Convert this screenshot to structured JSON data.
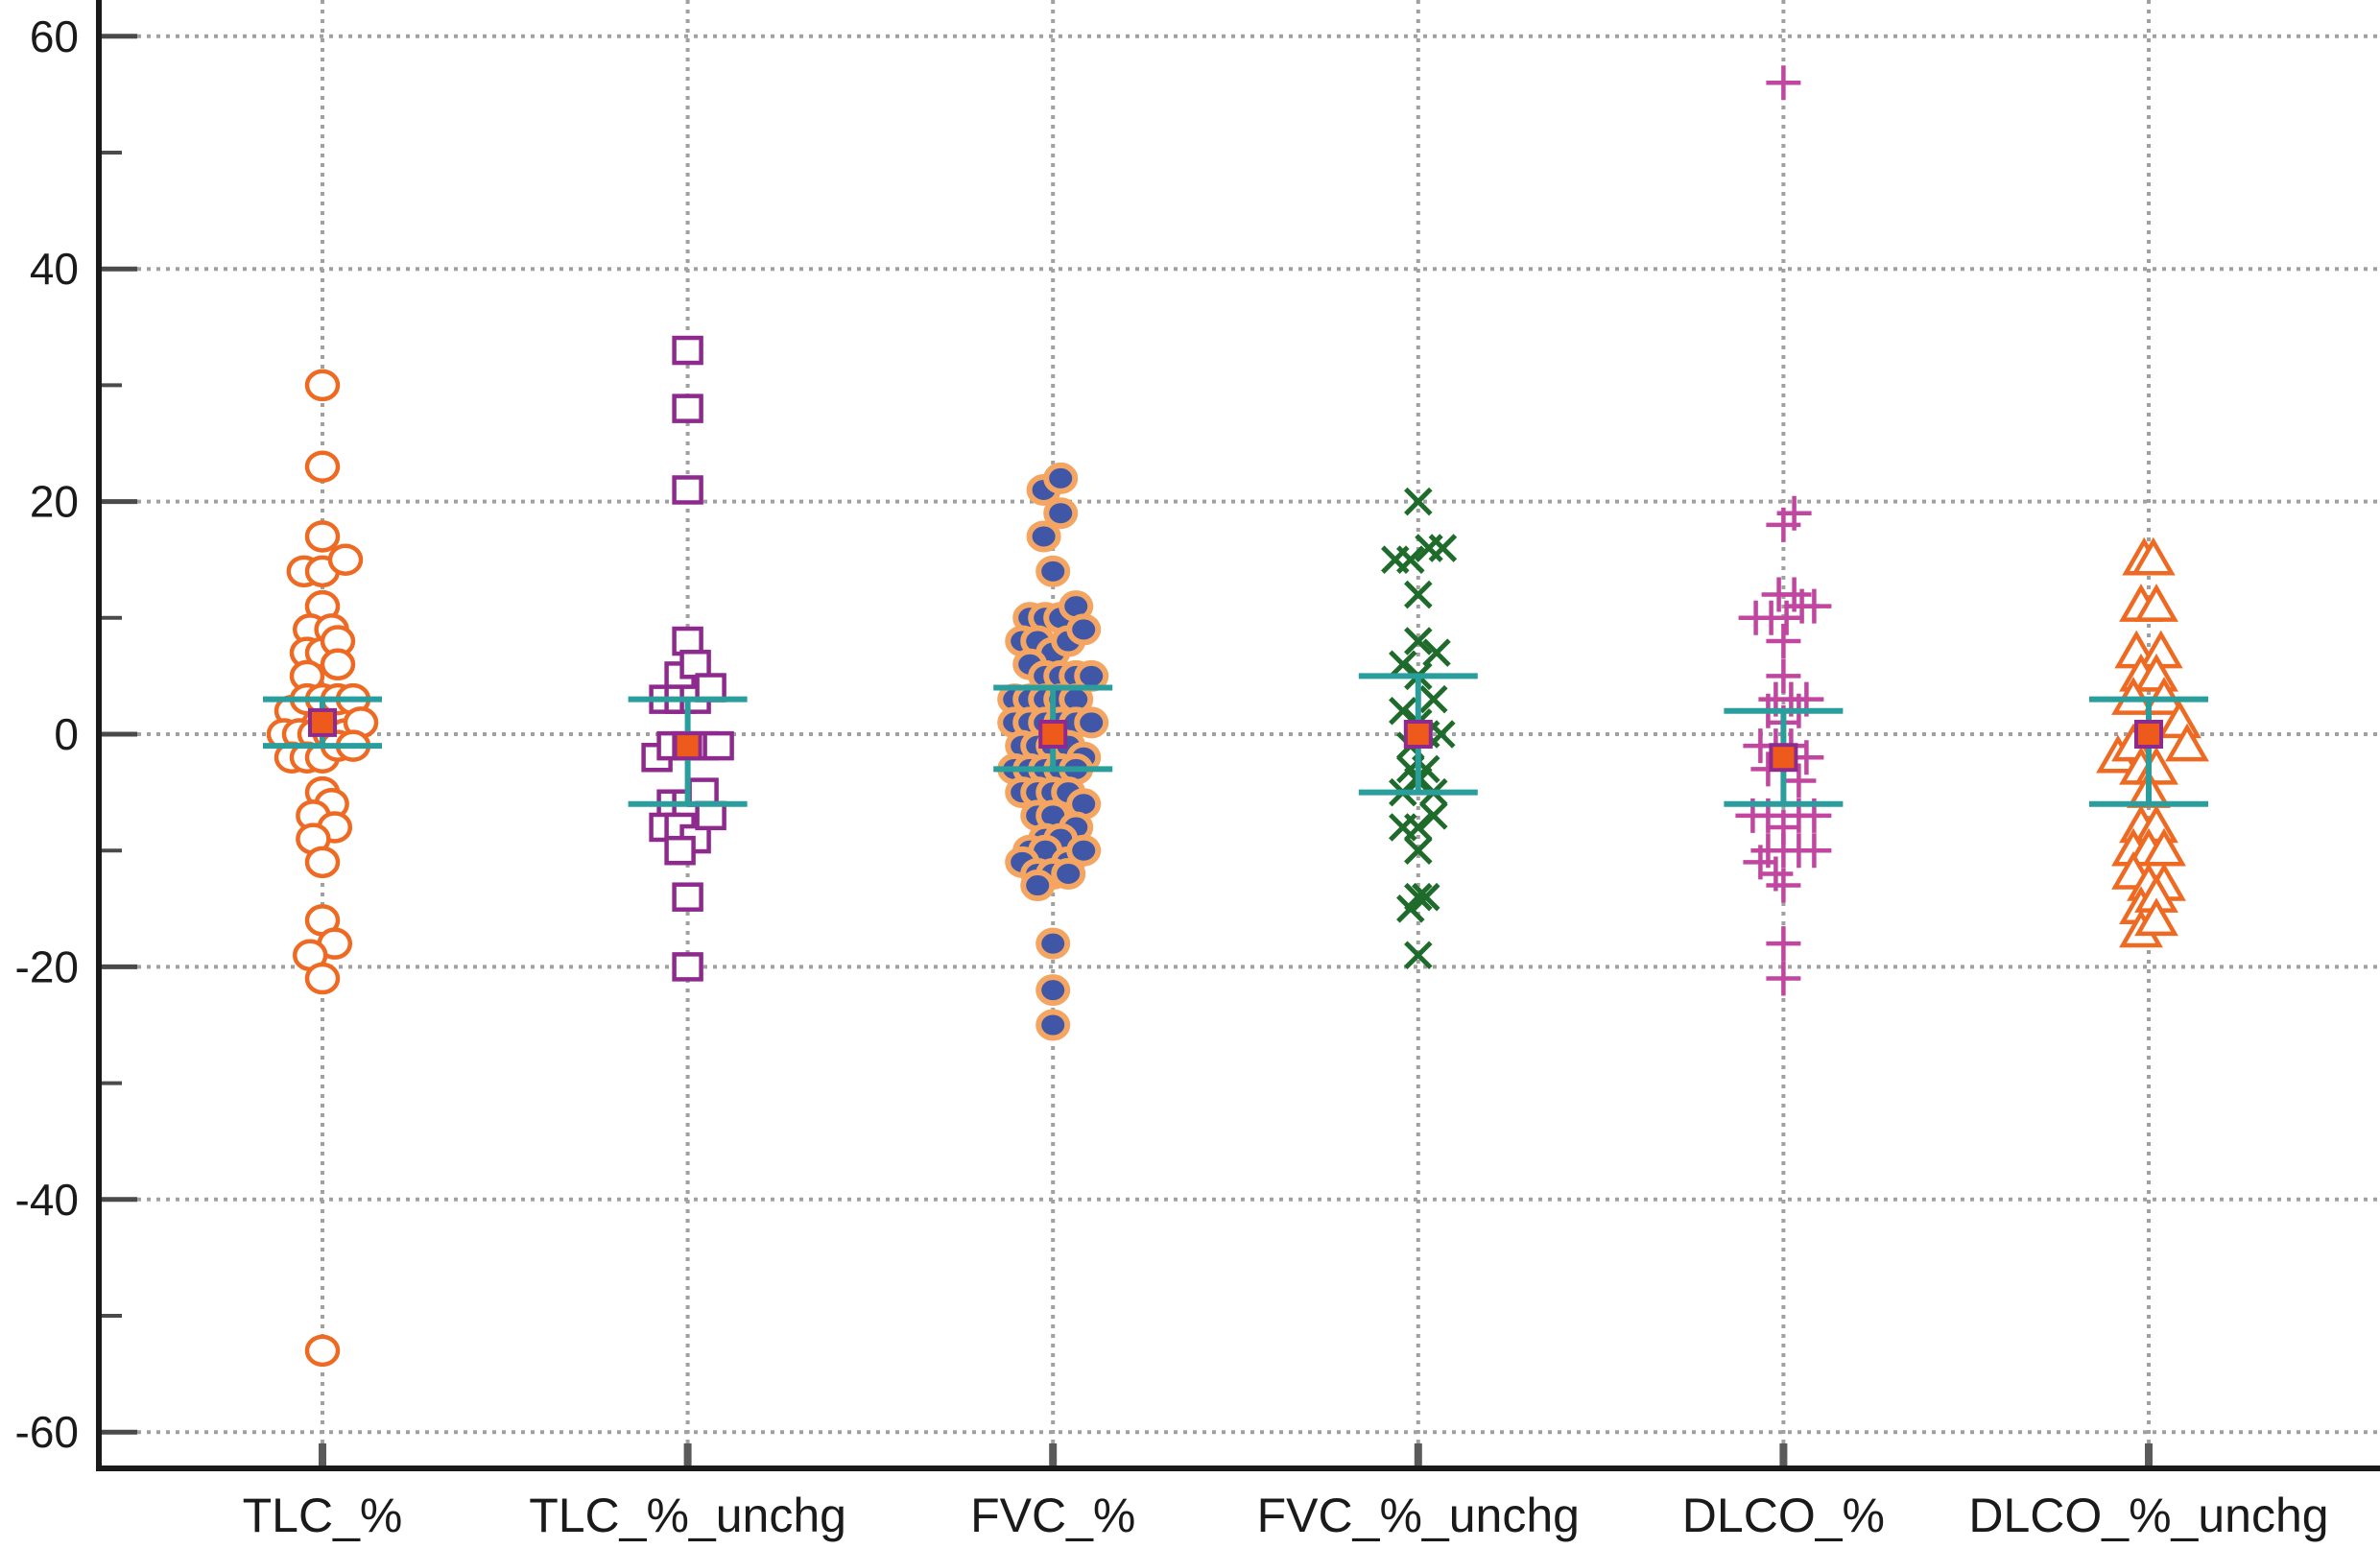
{
  "chart_data": {
    "type": "scatter",
    "xlabel": "",
    "ylabel": "",
    "ylim": [
      -63,
      63
    ],
    "yticks": [
      -60,
      -40,
      -20,
      0,
      20,
      40,
      60
    ],
    "yticks_minor": [
      -50,
      -30,
      -10,
      10,
      30,
      50
    ],
    "grid": true,
    "categories": [
      "TLC_%",
      "TLC_%_unchg",
      "FVC_%",
      "FVC_%_unchg",
      "DLCO_%",
      "DLCO_%_unchg"
    ],
    "series": [
      {
        "marker": "circle-open",
        "color": "#ee6a22",
        "mean": 1,
        "ci": [
          -1,
          3
        ],
        "points": [
          [
            0,
            30
          ],
          [
            0,
            23
          ],
          [
            0,
            17
          ],
          [
            -0.12,
            14
          ],
          [
            0,
            14
          ],
          [
            0.15,
            15
          ],
          [
            0,
            11
          ],
          [
            -0.08,
            9
          ],
          [
            0.06,
            9
          ],
          [
            -0.1,
            7
          ],
          [
            0,
            7
          ],
          [
            0.1,
            8
          ],
          [
            -0.1,
            5
          ],
          [
            0.1,
            6
          ],
          [
            -0.2,
            2
          ],
          [
            -0.1,
            3
          ],
          [
            0,
            3
          ],
          [
            0.1,
            3
          ],
          [
            0.2,
            3
          ],
          [
            -0.25,
            0
          ],
          [
            -0.15,
            0
          ],
          [
            -0.05,
            0
          ],
          [
            0.05,
            0
          ],
          [
            0.15,
            0
          ],
          [
            0.25,
            1
          ],
          [
            -0.2,
            -2
          ],
          [
            -0.1,
            -2
          ],
          [
            0,
            -2
          ],
          [
            0.1,
            -1
          ],
          [
            0.2,
            -1
          ],
          [
            0,
            -5
          ],
          [
            0.06,
            -6
          ],
          [
            -0.06,
            -7
          ],
          [
            0.08,
            -8
          ],
          [
            -0.06,
            -9
          ],
          [
            0,
            -11
          ],
          [
            0,
            -16
          ],
          [
            0.08,
            -18
          ],
          [
            -0.08,
            -19
          ],
          [
            0,
            -21
          ],
          [
            0,
            -53
          ]
        ]
      },
      {
        "marker": "square-open",
        "color": "#8e2a8e",
        "mean": -1,
        "ci": [
          -6,
          3
        ],
        "points": [
          [
            0,
            33
          ],
          [
            0,
            28
          ],
          [
            0,
            21
          ],
          [
            0,
            8
          ],
          [
            -0.05,
            5
          ],
          [
            0.05,
            6
          ],
          [
            -0.15,
            3
          ],
          [
            -0.05,
            3
          ],
          [
            0.05,
            3
          ],
          [
            0.15,
            4
          ],
          [
            -0.2,
            -2
          ],
          [
            -0.1,
            -1
          ],
          [
            0,
            -1
          ],
          [
            0.1,
            -1
          ],
          [
            0.2,
            -1
          ],
          [
            -0.1,
            -6
          ],
          [
            0,
            -6
          ],
          [
            0.1,
            -5
          ],
          [
            -0.15,
            -8
          ],
          [
            -0.05,
            -8
          ],
          [
            0.05,
            -9
          ],
          [
            0.15,
            -7
          ],
          [
            -0.05,
            -10
          ],
          [
            0,
            -14
          ],
          [
            0,
            -20
          ]
        ]
      },
      {
        "marker": "circle-filled",
        "color": "#3f57a6",
        "edge": "#f4a562",
        "mean": 0,
        "ci": [
          -3,
          4
        ],
        "points": [
          [
            -0.06,
            21
          ],
          [
            0.05,
            22
          ],
          [
            0.05,
            19
          ],
          [
            -0.06,
            17
          ],
          [
            0,
            14
          ],
          [
            -0.15,
            10
          ],
          [
            -0.05,
            10
          ],
          [
            0.05,
            10
          ],
          [
            0.15,
            11
          ],
          [
            -0.2,
            8
          ],
          [
            -0.1,
            8
          ],
          [
            0,
            7
          ],
          [
            0.1,
            8
          ],
          [
            0.2,
            9
          ],
          [
            -0.15,
            6
          ],
          [
            -0.05,
            5
          ],
          [
            0.05,
            5
          ],
          [
            0.15,
            5
          ],
          [
            0.25,
            5
          ],
          [
            -0.25,
            3
          ],
          [
            -0.15,
            3
          ],
          [
            -0.05,
            3
          ],
          [
            0.05,
            3
          ],
          [
            0.15,
            3
          ],
          [
            -0.25,
            1
          ],
          [
            -0.15,
            1
          ],
          [
            -0.05,
            1
          ],
          [
            0.05,
            1
          ],
          [
            0.15,
            1
          ],
          [
            0.25,
            1
          ],
          [
            -0.2,
            -1
          ],
          [
            -0.1,
            -1
          ],
          [
            0,
            -1
          ],
          [
            0.1,
            -1
          ],
          [
            0.2,
            -2
          ],
          [
            -0.25,
            -3
          ],
          [
            -0.15,
            -3
          ],
          [
            -0.05,
            -3
          ],
          [
            0.05,
            -3
          ],
          [
            0.15,
            -3
          ],
          [
            -0.2,
            -5
          ],
          [
            -0.1,
            -5
          ],
          [
            0,
            -5
          ],
          [
            0.1,
            -5
          ],
          [
            0.2,
            -6
          ],
          [
            -0.1,
            -7
          ],
          [
            0,
            -7
          ],
          [
            0.15,
            -8
          ],
          [
            -0.05,
            -9
          ],
          [
            0.05,
            -9
          ],
          [
            -0.15,
            -10
          ],
          [
            -0.05,
            -10
          ],
          [
            0.1,
            -11
          ],
          [
            0.2,
            -10
          ],
          [
            -0.2,
            -11
          ],
          [
            -0.1,
            -12
          ],
          [
            0,
            -12
          ],
          [
            0.1,
            -12
          ],
          [
            -0.1,
            -13
          ],
          [
            0,
            -18
          ],
          [
            0,
            -22
          ],
          [
            0,
            -25
          ]
        ]
      },
      {
        "marker": "x",
        "color": "#1f6b2b",
        "mean": 0,
        "ci": [
          -5,
          5
        ],
        "points": [
          [
            0,
            20
          ],
          [
            -0.15,
            15
          ],
          [
            -0.05,
            15
          ],
          [
            0.07,
            16
          ],
          [
            0.16,
            16
          ],
          [
            0,
            12
          ],
          [
            0,
            8
          ],
          [
            0.12,
            7
          ],
          [
            -0.1,
            6
          ],
          [
            0,
            5
          ],
          [
            -0.1,
            2
          ],
          [
            0,
            1
          ],
          [
            0.1,
            3
          ],
          [
            -0.05,
            -1
          ],
          [
            0.05,
            0
          ],
          [
            0.15,
            0
          ],
          [
            -0.05,
            -3
          ],
          [
            0.05,
            -3
          ],
          [
            -0.1,
            -5
          ],
          [
            0,
            -4
          ],
          [
            0.1,
            -5
          ],
          [
            -0.1,
            -8
          ],
          [
            0,
            -8
          ],
          [
            0.1,
            -7
          ],
          [
            0,
            -10
          ],
          [
            0,
            -14
          ],
          [
            -0.05,
            -15
          ],
          [
            0.05,
            -14
          ],
          [
            0,
            -19
          ]
        ]
      },
      {
        "marker": "plus",
        "color": "#c046a0",
        "mean": -2,
        "ci": [
          -6,
          2
        ],
        "points": [
          [
            0,
            56
          ],
          [
            0,
            18
          ],
          [
            0.07,
            19
          ],
          [
            -0.03,
            12
          ],
          [
            0.07,
            12
          ],
          [
            -0.18,
            10
          ],
          [
            -0.08,
            10
          ],
          [
            0.02,
            10
          ],
          [
            0.12,
            11
          ],
          [
            0.2,
            11
          ],
          [
            0,
            8
          ],
          [
            0,
            5
          ],
          [
            -0.05,
            3
          ],
          [
            0.05,
            3
          ],
          [
            0.15,
            3
          ],
          [
            -0.1,
            2
          ],
          [
            0,
            1
          ],
          [
            0.1,
            2
          ],
          [
            -0.15,
            -1
          ],
          [
            -0.05,
            -1
          ],
          [
            0.05,
            -1
          ],
          [
            0.15,
            -2
          ],
          [
            -0.1,
            -3
          ],
          [
            0,
            -3
          ],
          [
            0.1,
            -4
          ],
          [
            -0.2,
            -7
          ],
          [
            -0.1,
            -7
          ],
          [
            0,
            -8
          ],
          [
            0.1,
            -7
          ],
          [
            0.2,
            -7
          ],
          [
            -0.1,
            -10
          ],
          [
            0,
            -10
          ],
          [
            0.1,
            -10
          ],
          [
            0.2,
            -10
          ],
          [
            -0.15,
            -11
          ],
          [
            -0.05,
            -12
          ],
          [
            0,
            -13
          ],
          [
            0,
            -18
          ],
          [
            0,
            -21
          ]
        ]
      },
      {
        "marker": "triangle-open",
        "color": "#ee6a22",
        "mean": 0,
        "ci": [
          -6,
          3
        ],
        "points": [
          [
            -0.03,
            15
          ],
          [
            0.03,
            15
          ],
          [
            -0.05,
            11
          ],
          [
            0.05,
            11
          ],
          [
            -0.08,
            7
          ],
          [
            0.08,
            7
          ],
          [
            -0.05,
            5
          ],
          [
            0.05,
            5
          ],
          [
            -0.1,
            3
          ],
          [
            0.1,
            3
          ],
          [
            0.2,
            1
          ],
          [
            -0.2,
            -2
          ],
          [
            -0.1,
            -1
          ],
          [
            0.25,
            -1
          ],
          [
            -0.05,
            -3
          ],
          [
            0.05,
            -3
          ],
          [
            0,
            -5
          ],
          [
            -0.05,
            -8
          ],
          [
            0.05,
            -8
          ],
          [
            -0.1,
            -10
          ],
          [
            0,
            -10
          ],
          [
            0.1,
            -10
          ],
          [
            -0.1,
            -12
          ],
          [
            0,
            -13
          ],
          [
            0.1,
            -13
          ],
          [
            -0.05,
            -15
          ],
          [
            0.05,
            -14
          ],
          [
            -0.05,
            -17
          ],
          [
            0.05,
            -16
          ]
        ]
      }
    ]
  }
}
